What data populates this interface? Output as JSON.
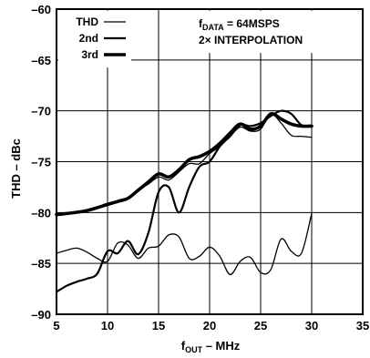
{
  "chart_data": {
    "type": "line",
    "title": "",
    "xlabel": {
      "main": "f",
      "sub": "OUT",
      "rest": " – MHz"
    },
    "ylabel": "THD – dBc",
    "xlim": [
      5,
      35
    ],
    "ylim": [
      -90,
      -60
    ],
    "x_ticks": [
      "5",
      "10",
      "15",
      "20",
      "25",
      "30",
      "35"
    ],
    "y_ticks": [
      "–60",
      "–65",
      "–70",
      "–75",
      "–80",
      "–85",
      "–90"
    ],
    "grid": true,
    "legend_position": "top-left",
    "annotations": [
      {
        "main": "f",
        "sub": "DATA",
        "rest": " = 64MSPS"
      },
      {
        "text": "2× INTERPOLATION"
      }
    ],
    "series": [
      {
        "name": "THD",
        "line_style": "thin",
        "x": [
          5,
          6,
          8,
          10,
          11,
          12,
          13,
          14,
          15,
          16,
          17,
          18,
          19,
          20,
          21,
          22,
          23,
          24,
          25,
          26,
          27,
          28,
          29,
          30
        ],
        "y": [
          -80.2,
          -80.1,
          -79.8,
          -79.3,
          -79,
          -78.6,
          -77.8,
          -77.2,
          -76.5,
          -76.8,
          -76,
          -75.2,
          -75.2,
          -74.2,
          -73.5,
          -72.5,
          -71.6,
          -72,
          -71.8,
          -70.3,
          -71.2,
          -72.4,
          -72.5,
          -72.6
        ]
      },
      {
        "name": "2nd",
        "line_style": "medium",
        "x": [
          5,
          6,
          7,
          8,
          9,
          10,
          11,
          12,
          13,
          14,
          15,
          16,
          17,
          18,
          19,
          20,
          21,
          22,
          23,
          24,
          25,
          26,
          27,
          28,
          29,
          30
        ],
        "y": [
          -87.8,
          -87.2,
          -86.8,
          -86.5,
          -86,
          -83.8,
          -84,
          -82.8,
          -84.1,
          -82,
          -78,
          -77.5,
          -80,
          -77.5,
          -75.5,
          -75,
          -73.5,
          -72.5,
          -71.4,
          -71.5,
          -71.2,
          -70.5,
          -70,
          -70.3,
          -71.4,
          -71.5
        ]
      },
      {
        "name": "3rd",
        "line_style": "thick",
        "x": [
          5,
          6,
          8,
          10,
          11,
          12,
          13,
          14,
          15,
          16,
          17,
          18,
          19,
          20,
          21,
          22,
          23,
          24,
          25,
          26,
          27,
          28,
          29,
          30
        ],
        "y": [
          -80.2,
          -80.1,
          -79.8,
          -79.2,
          -78.9,
          -78.6,
          -77.8,
          -77,
          -76.2,
          -76.5,
          -75.8,
          -74.8,
          -74.5,
          -74,
          -73.2,
          -72.2,
          -71.3,
          -71.8,
          -71.5,
          -70.3,
          -70.8,
          -71.3,
          -71.5,
          -71.5
        ]
      },
      {
        "name": "",
        "line_style": "thin",
        "x": [
          5,
          6,
          7,
          8,
          9,
          10,
          11,
          12,
          13,
          14,
          15,
          16,
          17,
          18,
          19,
          20,
          21,
          22,
          23,
          24,
          25,
          26,
          27,
          28,
          29,
          30
        ],
        "y": [
          -84,
          -83.7,
          -83.5,
          -83.9,
          -84.5,
          -84.8,
          -83,
          -83.2,
          -84.5,
          -83.5,
          -83.3,
          -82.2,
          -82.4,
          -84.5,
          -84.3,
          -83.4,
          -84.3,
          -86.1,
          -84.8,
          -84.4,
          -85.9,
          -85.6,
          -82.6,
          -83.8,
          -84,
          -80.1
        ]
      }
    ]
  }
}
